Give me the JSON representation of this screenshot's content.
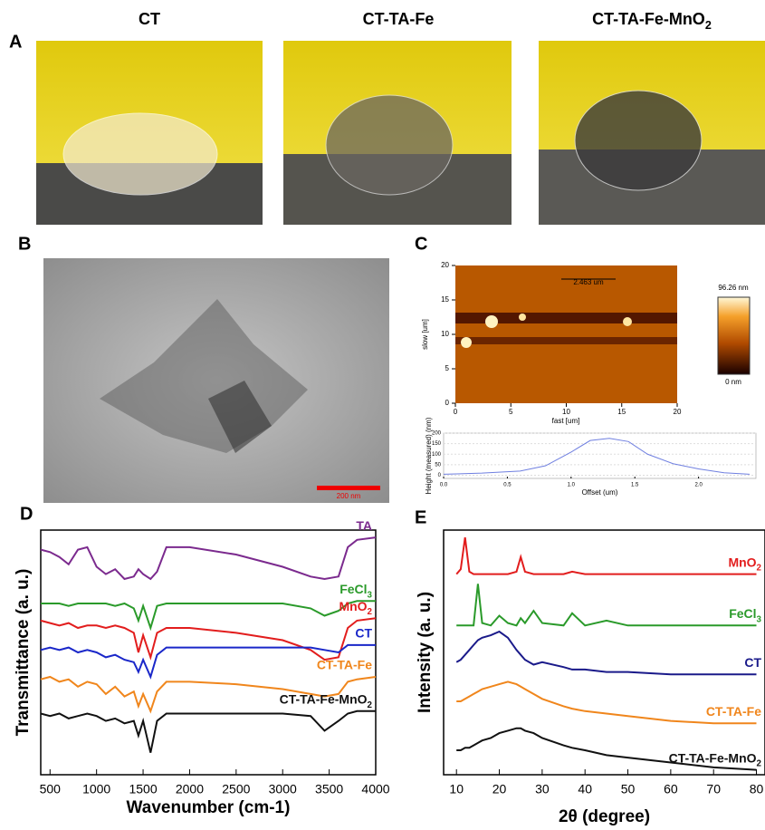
{
  "figure": {
    "panels": [
      "A",
      "B",
      "C",
      "D",
      "E"
    ],
    "photos": [
      "CT",
      "CT-TA-Fe",
      "CT-TA-Fe-MnO2"
    ],
    "tem_scale": "200 nm",
    "afm": {
      "xlabel": "fast [um]",
      "ylabel": "slow [um]",
      "xticks": [
        0,
        5,
        10,
        15,
        20
      ],
      "yticks": [
        0,
        5,
        10,
        15,
        20
      ],
      "lim": [
        0,
        20
      ],
      "marker": "2.463 um",
      "colorbar_max": "96.26 nm",
      "colorbar_min": "0 nm"
    }
  },
  "chart_data": [
    {
      "type": "line",
      "xlabel": "Wavenumber (cm-1)",
      "ylabel": "Transmittance (a. u.)",
      "xlim": [
        400,
        4000
      ],
      "xticks": [
        500,
        1000,
        1500,
        2000,
        2500,
        3000,
        3500,
        4000
      ],
      "ylim": [
        0,
        100
      ],
      "x": [
        400,
        500,
        600,
        700,
        800,
        900,
        1000,
        1100,
        1200,
        1300,
        1400,
        1450,
        1500,
        1580,
        1650,
        1750,
        2000,
        2500,
        3000,
        3300,
        3450,
        3600,
        3700,
        3800,
        4000
      ],
      "series": [
        {
          "name": "TA",
          "color": "#7b2a8e",
          "values": [
            92,
            91,
            89,
            86,
            92,
            93,
            85,
            82,
            84,
            80,
            81,
            84,
            82,
            80,
            83,
            93,
            93,
            90,
            85,
            81,
            80,
            81,
            93,
            96,
            97
          ]
        },
        {
          "name": "FeCl3",
          "color": "#2a9a2a",
          "values": [
            70,
            70,
            70,
            69,
            70,
            70,
            70,
            70,
            69,
            70,
            68,
            63,
            69,
            60,
            69,
            70,
            70,
            70,
            70,
            68,
            65,
            67,
            70,
            71,
            71
          ]
        },
        {
          "name": "MnO2",
          "color": "#e21d1d",
          "values": [
            63,
            62,
            61,
            62,
            60,
            61,
            61,
            60,
            61,
            60,
            58,
            50,
            57,
            48,
            58,
            60,
            60,
            58,
            55,
            51,
            47,
            48,
            60,
            63,
            64
          ]
        },
        {
          "name": "CT",
          "color": "#1a27c9",
          "values": [
            51,
            52,
            51,
            52,
            50,
            51,
            50,
            48,
            49,
            47,
            46,
            42,
            47,
            40,
            49,
            52,
            52,
            52,
            52,
            52,
            51,
            50,
            53,
            53,
            53
          ]
        },
        {
          "name": "CT-TA-Fe",
          "color": "#f0861c",
          "values": [
            39,
            40,
            38,
            39,
            36,
            38,
            37,
            33,
            36,
            32,
            34,
            28,
            33,
            26,
            34,
            38,
            38,
            37,
            35,
            33,
            32,
            33,
            38,
            39,
            40
          ]
        },
        {
          "name": "CT-TA-Fe-MnO2",
          "color": "#111111",
          "values": [
            25,
            24,
            25,
            23,
            24,
            25,
            24,
            22,
            23,
            21,
            22,
            16,
            22,
            9,
            22,
            25,
            25,
            25,
            25,
            24,
            18,
            22,
            25,
            26,
            26
          ]
        }
      ]
    },
    {
      "type": "line",
      "xlabel": "2θ (degree)",
      "ylabel": "Intensity (a. u.)",
      "xlim": [
        7,
        82
      ],
      "xticks": [
        10,
        20,
        30,
        40,
        50,
        60,
        70,
        80
      ],
      "ylim": [
        0,
        100
      ],
      "x": [
        10,
        11,
        12,
        13,
        14,
        15,
        16,
        18,
        20,
        22,
        24,
        25,
        26,
        28,
        30,
        35,
        37,
        40,
        45,
        50,
        60,
        70,
        80
      ],
      "series": [
        {
          "name": "MnO2",
          "color": "#e21d1d",
          "values": [
            82,
            84,
            97,
            83,
            82,
            82,
            82,
            82,
            82,
            82,
            83,
            89,
            83,
            82,
            82,
            82,
            83,
            82,
            82,
            82,
            82,
            82,
            82
          ]
        },
        {
          "name": "FeCl3",
          "color": "#2a9a2a",
          "values": [
            61,
            61,
            61,
            61,
            61,
            78,
            62,
            61,
            65,
            62,
            61,
            64,
            62,
            67,
            62,
            61,
            66,
            61,
            63,
            61,
            61,
            61,
            61
          ]
        },
        {
          "name": "CT",
          "color": "#1a1a8a",
          "values": [
            46,
            47,
            49,
            51,
            53,
            55,
            56,
            57,
            58.5,
            56,
            51,
            49,
            47,
            45,
            46,
            44,
            43,
            43,
            42,
            42,
            41,
            41,
            41
          ]
        },
        {
          "name": "CT-TA-Fe",
          "color": "#f0861c",
          "values": [
            30,
            30,
            31,
            32,
            33,
            34,
            35,
            36,
            37,
            38,
            37,
            36,
            35,
            33,
            31,
            28,
            27,
            26,
            25,
            24,
            22,
            21,
            21
          ]
        },
        {
          "name": "CT-TA-Fe-MnO2",
          "color": "#111111",
          "values": [
            10,
            10,
            11,
            11,
            12,
            13,
            14,
            15,
            17,
            18,
            19,
            19,
            18,
            17,
            15,
            12,
            11,
            10,
            8,
            7,
            5,
            3,
            2
          ]
        }
      ]
    },
    {
      "type": "profile",
      "xlabel": "Offset (um)",
      "ylabel": "Height (measured) (nm)",
      "xlim": [
        0,
        2.45
      ],
      "xticks": [
        {
          "value": 0,
          "label": "0.0"
        },
        0.5,
        {
          "value": 1,
          "label": "1.0"
        },
        1.5,
        {
          "value": 2,
          "label": "2.0"
        }
      ],
      "ylim": [
        -15,
        200
      ],
      "yticks": [
        0,
        50,
        100,
        150,
        200
      ],
      "x": [
        0,
        0.3,
        0.6,
        0.8,
        1.0,
        1.15,
        1.3,
        1.45,
        1.6,
        1.8,
        2.0,
        2.2,
        2.4
      ],
      "series": [
        {
          "color": "#6f7fe0",
          "values": [
            5,
            10,
            20,
            45,
            110,
            165,
            175,
            160,
            100,
            55,
            30,
            12,
            5
          ]
        }
      ]
    }
  ]
}
